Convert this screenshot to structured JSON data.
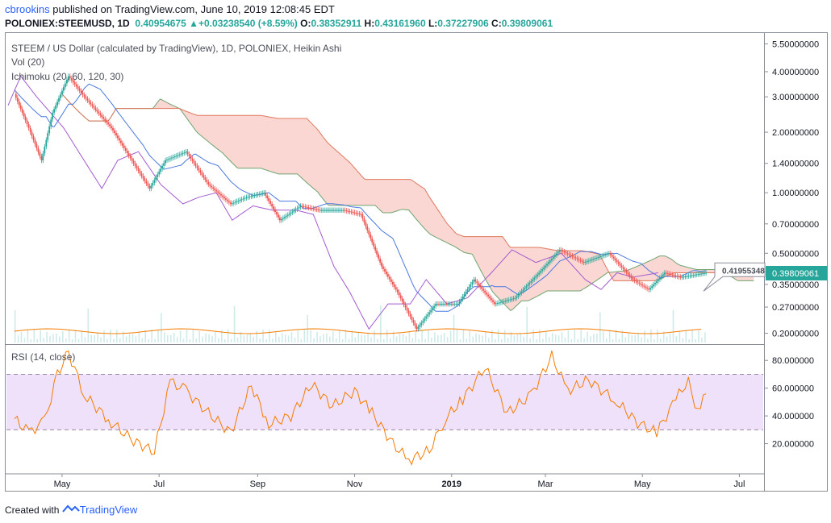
{
  "header": {
    "user": "cbrookins",
    "published": "published on TradingView.com, June 10, 2019 12:08:45 EDT",
    "symbol": "POLONIEX:STEEMUSD, 1D",
    "last": "0.40954675",
    "change_arrow": "▲",
    "change": "+0.03238540 (+8.59%)",
    "o_label": "O:",
    "o": "0.38352911",
    "h_label": "H:",
    "h": "0.43161960",
    "l_label": "L:",
    "l": "0.37227906",
    "c_label": "C:",
    "c": "0.39809061"
  },
  "legend": {
    "title": "STEEM / US Dollar (calculated by TradingView), 1D, POLONIEX, Heikin Ashi",
    "vol": "Vol (20)",
    "ichimoku": "Ichimoku (20, 60, 120, 30)",
    "rsi": "RSI (14, close)"
  },
  "footer": {
    "created": "Created with",
    "brand": "TradingView"
  },
  "colors": {
    "up": "#26a69a",
    "down": "#ef5350",
    "cloud": "#f8c9c4",
    "rsi": "#f57c00",
    "rsi_band": "#ead9f7",
    "accent": "#2962ff"
  },
  "chart_data": [
    {
      "type": "candlestick",
      "title": "STEEM / US Dollar (calculated by TradingView), 1D, POLONIEX, Heikin Ashi",
      "y_scale": "log",
      "ylim": [
        0.18,
        6.0
      ],
      "y_ticks": [
        "5.50000000",
        "4.00000000",
        "3.00000000",
        "2.00000000",
        "1.40000000",
        "1.00000000",
        "0.70000000",
        "0.50000000",
        "0.35000000",
        "0.27000000",
        "0.20000000"
      ],
      "y_tick_values": [
        5.5,
        4.0,
        3.0,
        2.0,
        1.4,
        1.0,
        0.7,
        0.5,
        0.35,
        0.27,
        0.2
      ],
      "x_ticks": [
        "May",
        "Jul",
        "Sep",
        "Nov",
        "2019",
        "Mar",
        "May",
        "Jul"
      ],
      "price_labels": {
        "current": "0.39809061",
        "pointer": "0.41955348"
      },
      "close_series": [
        {
          "x": "2018-04-01",
          "y": 3.1
        },
        {
          "x": "2018-04-10",
          "y": 2.1
        },
        {
          "x": "2018-04-18",
          "y": 1.45
        },
        {
          "x": "2018-04-25",
          "y": 2.5
        },
        {
          "x": "2018-05-05",
          "y": 3.8
        },
        {
          "x": "2018-05-15",
          "y": 3.0
        },
        {
          "x": "2018-06-01",
          "y": 2.1
        },
        {
          "x": "2018-06-15",
          "y": 1.4
        },
        {
          "x": "2018-06-25",
          "y": 1.05
        },
        {
          "x": "2018-07-05",
          "y": 1.45
        },
        {
          "x": "2018-07-18",
          "y": 1.6
        },
        {
          "x": "2018-08-01",
          "y": 1.1
        },
        {
          "x": "2018-08-15",
          "y": 0.88
        },
        {
          "x": "2018-08-25",
          "y": 0.95
        },
        {
          "x": "2018-09-05",
          "y": 1.0
        },
        {
          "x": "2018-09-15",
          "y": 0.73
        },
        {
          "x": "2018-09-28",
          "y": 0.86
        },
        {
          "x": "2018-10-10",
          "y": 0.82
        },
        {
          "x": "2018-10-25",
          "y": 0.82
        },
        {
          "x": "2018-11-05",
          "y": 0.78
        },
        {
          "x": "2018-11-18",
          "y": 0.43
        },
        {
          "x": "2018-11-28",
          "y": 0.32
        },
        {
          "x": "2018-12-10",
          "y": 0.21
        },
        {
          "x": "2018-12-22",
          "y": 0.28
        },
        {
          "x": "2019-01-05",
          "y": 0.28
        },
        {
          "x": "2019-01-15",
          "y": 0.37
        },
        {
          "x": "2019-01-28",
          "y": 0.28
        },
        {
          "x": "2019-02-10",
          "y": 0.3
        },
        {
          "x": "2019-02-25",
          "y": 0.4
        },
        {
          "x": "2019-03-10",
          "y": 0.52
        },
        {
          "x": "2019-03-25",
          "y": 0.45
        },
        {
          "x": "2019-04-10",
          "y": 0.5
        },
        {
          "x": "2019-04-25",
          "y": 0.37
        },
        {
          "x": "2019-05-05",
          "y": 0.33
        },
        {
          "x": "2019-05-15",
          "y": 0.4
        },
        {
          "x": "2019-05-25",
          "y": 0.38
        },
        {
          "x": "2019-06-10",
          "y": 0.4
        }
      ]
    },
    {
      "type": "line",
      "title": "RSI (14, close)",
      "ylim": [
        0,
        90
      ],
      "y_ticks": [
        "80.000000",
        "60.000000",
        "40.000000",
        "20.000000"
      ],
      "y_tick_values": [
        80,
        60,
        40,
        20
      ],
      "band": [
        30,
        70
      ],
      "x_ticks": [
        "May",
        "Jul",
        "Sep",
        "Nov",
        "2019",
        "Mar",
        "May",
        "Jul"
      ],
      "series": [
        {
          "values": [
            {
              "x": "2018-04-01",
              "y": 38
            },
            {
              "x": "2018-04-10",
              "y": 28
            },
            {
              "x": "2018-04-20",
              "y": 36
            },
            {
              "x": "2018-04-28",
              "y": 70
            },
            {
              "x": "2018-05-05",
              "y": 86
            },
            {
              "x": "2018-05-15",
              "y": 55
            },
            {
              "x": "2018-06-01",
              "y": 35
            },
            {
              "x": "2018-06-15",
              "y": 22
            },
            {
              "x": "2018-06-28",
              "y": 14
            },
            {
              "x": "2018-07-08",
              "y": 65
            },
            {
              "x": "2018-07-18",
              "y": 58
            },
            {
              "x": "2018-08-01",
              "y": 42
            },
            {
              "x": "2018-08-15",
              "y": 28
            },
            {
              "x": "2018-08-28",
              "y": 62
            },
            {
              "x": "2018-09-08",
              "y": 34
            },
            {
              "x": "2018-09-22",
              "y": 40
            },
            {
              "x": "2018-10-05",
              "y": 63
            },
            {
              "x": "2018-10-18",
              "y": 47
            },
            {
              "x": "2018-11-01",
              "y": 58
            },
            {
              "x": "2018-11-12",
              "y": 42
            },
            {
              "x": "2018-11-25",
              "y": 20
            },
            {
              "x": "2018-12-05",
              "y": 8
            },
            {
              "x": "2018-12-18",
              "y": 15
            },
            {
              "x": "2018-12-28",
              "y": 38
            },
            {
              "x": "2019-01-08",
              "y": 52
            },
            {
              "x": "2019-01-22",
              "y": 75
            },
            {
              "x": "2019-02-05",
              "y": 42
            },
            {
              "x": "2019-02-20",
              "y": 55
            },
            {
              "x": "2019-03-05",
              "y": 83
            },
            {
              "x": "2019-03-15",
              "y": 58
            },
            {
              "x": "2019-03-28",
              "y": 66
            },
            {
              "x": "2019-04-15",
              "y": 50
            },
            {
              "x": "2019-04-28",
              "y": 35
            },
            {
              "x": "2019-05-10",
              "y": 28
            },
            {
              "x": "2019-05-22",
              "y": 52
            },
            {
              "x": "2019-05-30",
              "y": 66
            },
            {
              "x": "2019-06-03",
              "y": 42
            },
            {
              "x": "2019-06-10",
              "y": 56
            }
          ]
        }
      ]
    }
  ]
}
